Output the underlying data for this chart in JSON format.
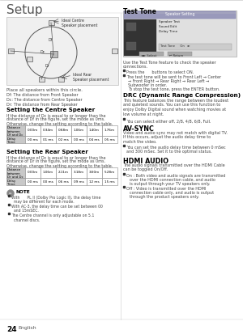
{
  "title": "Setup",
  "page_num": "24",
  "page_label": "English",
  "bg_color": "#ffffff",
  "left_col": {
    "centre_table_row1": [
      "0.00m",
      "0.34m",
      "0.68m",
      "1.06m",
      "1.40m",
      "1.76m"
    ],
    "centre_table_row2": [
      "00 ms",
      "01 ms",
      "02 ms",
      "00 ms",
      "04 ms",
      "05 ms"
    ],
    "rear_table_row1": [
      "0.00m",
      "1.06m",
      "2.11m",
      "3.18m",
      "3.60m",
      "5.28m"
    ],
    "rear_table_row2": [
      "00 ms",
      "00 ms",
      "06 ms",
      "09 ms",
      "12 ms",
      "15 ms"
    ],
    "note_lines": [
      "With      PL II (Dolby Pro Logic II), the delay time",
      "may be different for each mode.",
      "With AC-3, the delay time can be set between 00",
      "and 15mSEC.",
      "The Centre channel is only adjustable on 5.1",
      "channel discs."
    ]
  },
  "right_col": {
    "drc_text": [
      "This feature balances the range between the loudest",
      "and quietest sounds. You can use this function to",
      "enjoy Dolby Digital sound when watching movies at",
      "low volume at night."
    ],
    "drc_bullet": "You can select either off, 2/8, 4/8, 6/8, Full.",
    "avsync_text": [
      "Video and audio sync may not match with digital TV.",
      "If this occurs, adjust the audio delay time to",
      "match the video."
    ],
    "avsync_bullet": [
      "You can set the audio delay time between 0 mSec",
      "and 300 mSec. Set it to the optimal status."
    ],
    "hdmi_text": [
      "The audio signals transmitted over the HDMI Cable",
      "can be toggled On/Off."
    ],
    "hdmi_bullets": [
      "On : Both video and audio signals are transmitted",
      "over the HDMI connection cable, and audio",
      "is output through your TV speakers only.",
      "Off : Video is transmitted over the HDMI",
      "connection cable only, and audio is output",
      "through the product speakers only."
    ]
  },
  "colors": {
    "table_header_bg": "#c8c8c8",
    "table_border": "#888888",
    "body_text": "#444444"
  }
}
